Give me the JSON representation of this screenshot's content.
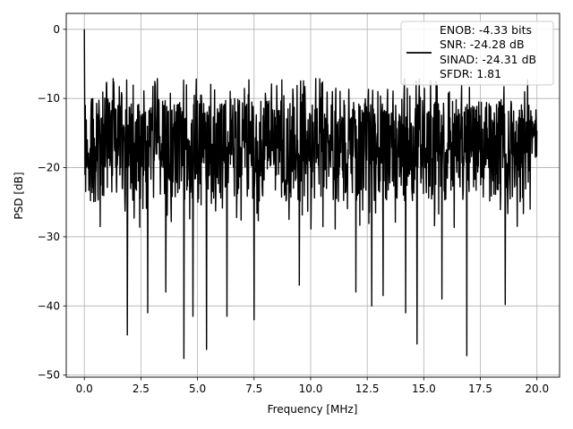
{
  "chart_data": {
    "type": "line",
    "xlabel": "Frequency [MHz]",
    "ylabel": "PSD [dB]",
    "xlim": [
      -0.8,
      21.0
    ],
    "ylim": [
      -50.3,
      2.3
    ],
    "xticks": [
      0.0,
      2.5,
      5.0,
      7.5,
      10.0,
      12.5,
      15.0,
      17.5,
      20.0
    ],
    "xtick_labels": [
      "0.0",
      "2.5",
      "5.0",
      "7.5",
      "10.0",
      "12.5",
      "15.0",
      "17.5",
      "20.0"
    ],
    "yticks": [
      0,
      -10,
      -20,
      -30,
      -40,
      -50
    ],
    "ytick_labels": [
      "0",
      "−10",
      "−20",
      "−30",
      "−40",
      "−50"
    ],
    "grid": true,
    "legend_position": "top-right",
    "legend": [
      "ENOB: -4.33 bits",
      "SNR: -24.28 dB",
      "SINAD: -24.31 dB",
      "SFDR: 1.81"
    ],
    "series": [
      {
        "color": "#000000",
        "x_start": 0.0,
        "x_end": 20.0,
        "description": "noise-like PSD, mostly between -25 and -8 dB",
        "peak": {
          "x": 0.0,
          "y": 0.0
        },
        "dips": [
          {
            "x": 1.9,
            "y": -44.2
          },
          {
            "x": 2.8,
            "y": -41.0
          },
          {
            "x": 3.6,
            "y": -38.0
          },
          {
            "x": 4.4,
            "y": -47.6
          },
          {
            "x": 4.8,
            "y": -41.5
          },
          {
            "x": 5.4,
            "y": -46.3
          },
          {
            "x": 6.3,
            "y": -41.5
          },
          {
            "x": 7.5,
            "y": -42.0
          },
          {
            "x": 9.5,
            "y": -37.0
          },
          {
            "x": 12.0,
            "y": -38.0
          },
          {
            "x": 12.7,
            "y": -40.0
          },
          {
            "x": 13.2,
            "y": -38.5
          },
          {
            "x": 14.2,
            "y": -41.0
          },
          {
            "x": 14.7,
            "y": -45.5
          },
          {
            "x": 15.8,
            "y": -39.0
          },
          {
            "x": 16.9,
            "y": -47.2
          },
          {
            "x": 18.6,
            "y": -39.8
          }
        ]
      }
    ]
  }
}
